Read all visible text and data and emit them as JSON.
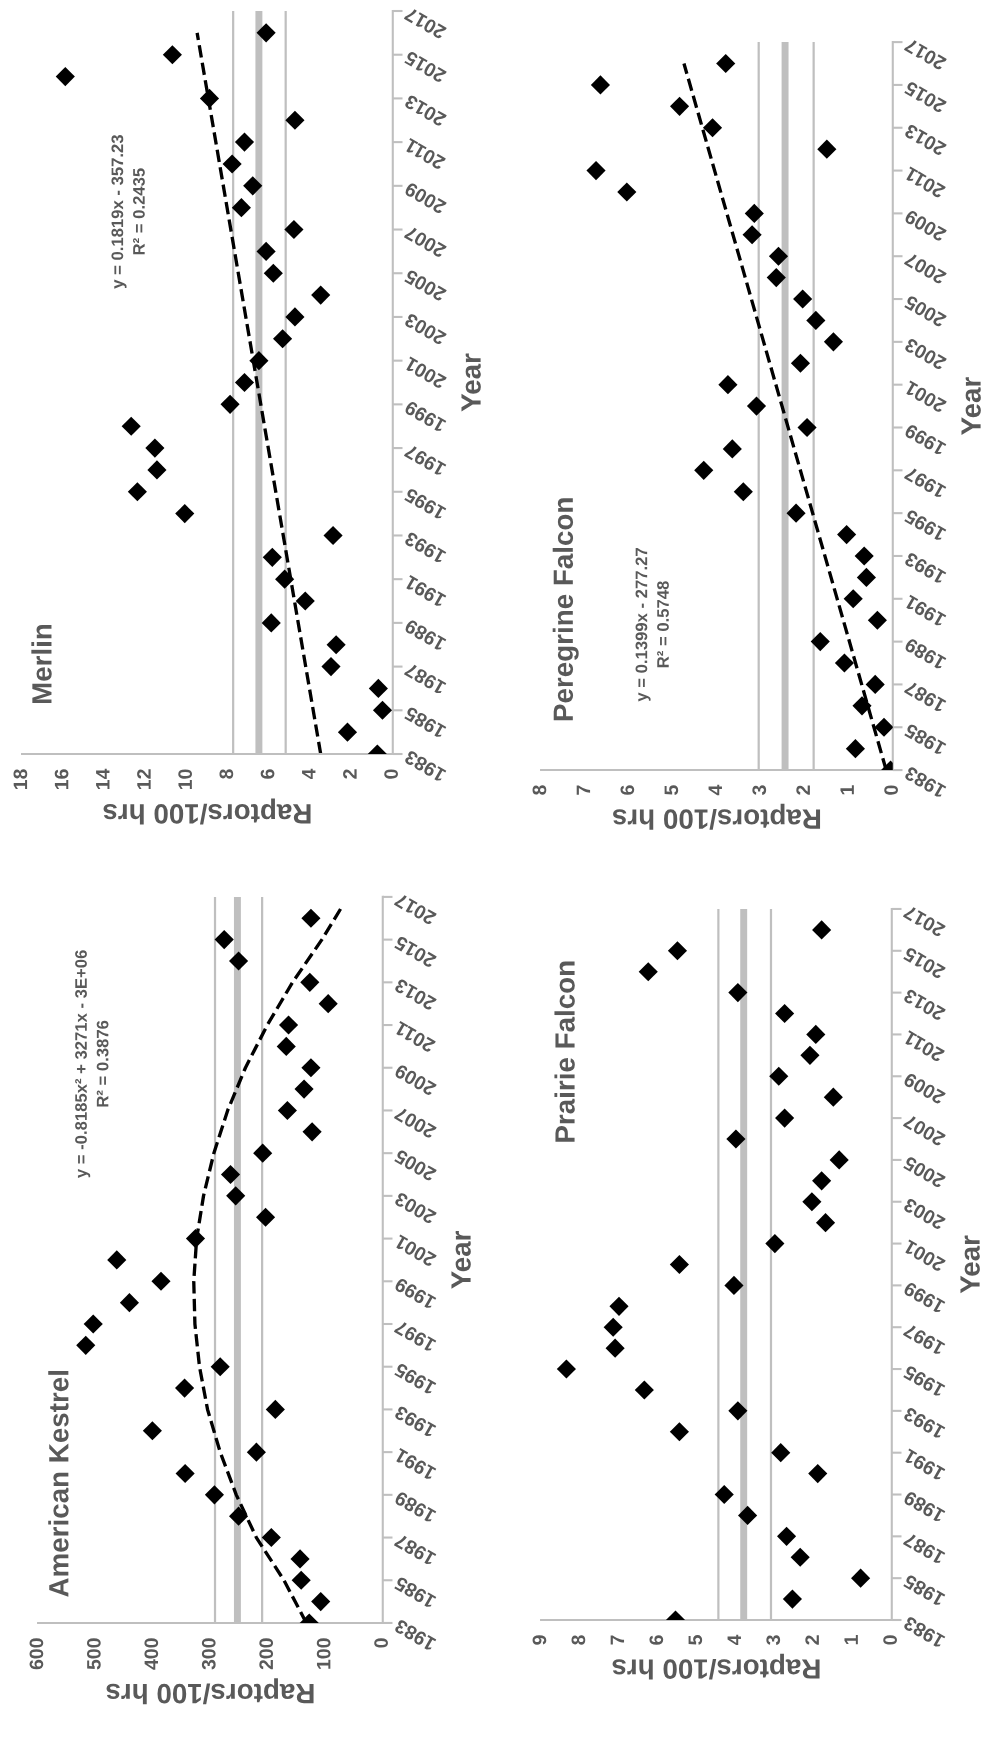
{
  "chart_data": [
    {
      "type": "scatter",
      "orientation": "horizontal",
      "title": "Merlin",
      "xlabel": "Raptors/100 hrs",
      "ylabel": "Year",
      "xlim": [
        18,
        0
      ],
      "xticks": [
        18,
        16,
        14,
        12,
        10,
        8,
        6,
        4,
        2,
        0
      ],
      "ylim": [
        1983,
        2017
      ],
      "yticks": [
        1983,
        1985,
        1987,
        1989,
        1991,
        1993,
        1995,
        1997,
        1999,
        2001,
        2003,
        2005,
        2007,
        2009,
        2011,
        2013,
        2015,
        2017
      ],
      "grid": false,
      "legend": false,
      "x": [
        1983,
        1984,
        1985,
        1986,
        1987,
        1988,
        1989,
        1990,
        1991,
        1992,
        1993,
        1994,
        1995,
        1996,
        1997,
        1998,
        1999,
        2000,
        2001,
        2002,
        2003,
        2004,
        2005,
        2006,
        2007,
        2008,
        2009,
        2010,
        2011,
        2012,
        2013,
        2014,
        2015,
        2016
      ],
      "series": [
        {
          "marker": "diamond",
          "color": "#000000",
          "values": [
            0.75,
            2.2,
            0.5,
            0.7,
            3.0,
            2.75,
            5.9,
            4.25,
            5.25,
            5.85,
            2.9,
            10.1,
            12.4,
            11.45,
            11.55,
            12.7,
            7.9,
            7.2,
            6.5,
            5.35,
            4.75,
            3.5,
            5.8,
            6.15,
            4.8,
            7.35,
            6.8,
            7.8,
            7.2,
            4.75,
            8.9,
            15.9,
            10.7,
            6.15
          ]
        },
        {
          "type": "line",
          "color": "#000000",
          "line_style": "dashed",
          "x": [
            1983,
            2016
          ],
          "values": [
            3.5,
            9.5
          ]
        }
      ],
      "ref_lines": [
        {
          "axis": "x",
          "value": 7.75,
          "color": "#bfbfbf"
        },
        {
          "axis": "x",
          "value": 6.5,
          "color": "#bfbfbf"
        },
        {
          "axis": "x",
          "value": 5.2,
          "color": "#bfbfbf"
        }
      ],
      "annotations": [
        "y = 0.1819x - 357.23\nR² = 0.2435"
      ]
    },
    {
      "type": "scatter",
      "orientation": "horizontal",
      "title": "Peregrine Falcon",
      "xlabel": "Raptors/100 hrs",
      "ylabel": "Year",
      "xlim": [
        8,
        0
      ],
      "xticks": [
        8,
        7,
        6,
        5,
        4,
        3,
        2,
        1,
        0
      ],
      "ylim": [
        1983,
        2017
      ],
      "yticks": [
        1983,
        1985,
        1987,
        1989,
        1991,
        1993,
        1995,
        1997,
        1999,
        2001,
        2003,
        2005,
        2007,
        2009,
        2011,
        2013,
        2015,
        2017
      ],
      "grid": false,
      "legend": false,
      "x": [
        1983,
        1984,
        1985,
        1986,
        1987,
        1988,
        1989,
        1990,
        1991,
        1992,
        1993,
        1994,
        1995,
        1996,
        1997,
        1998,
        1999,
        2000,
        2001,
        2002,
        2003,
        2004,
        2005,
        2006,
        2007,
        2008,
        2009,
        2010,
        2011,
        2012,
        2013,
        2014,
        2015,
        2016
      ],
      "series": [
        {
          "marker": "diamond",
          "color": "#000000",
          "values": [
            0.05,
            0.85,
            0.2,
            0.7,
            0.4,
            1.1,
            1.65,
            0.35,
            0.9,
            0.6,
            0.65,
            1.05,
            2.2,
            3.4,
            4.3,
            3.65,
            1.95,
            3.1,
            3.75,
            2.1,
            1.35,
            1.75,
            2.05,
            2.65,
            2.6,
            3.2,
            3.15,
            6.05,
            6.75,
            1.5,
            4.1,
            4.85,
            6.65,
            3.8
          ]
        },
        {
          "type": "line",
          "color": "#000000",
          "line_style": "dashed",
          "x": [
            1983,
            2016
          ],
          "values": [
            0.15,
            4.75
          ]
        }
      ],
      "ref_lines": [
        {
          "axis": "x",
          "value": 3.05,
          "color": "#bfbfbf"
        },
        {
          "axis": "x",
          "value": 2.45,
          "color": "#bfbfbf"
        },
        {
          "axis": "x",
          "value": 1.8,
          "color": "#bfbfbf"
        }
      ],
      "annotations": [
        "y = 0.1399x - 277.27\nR² = 0.5748"
      ]
    },
    {
      "type": "scatter",
      "orientation": "horizontal",
      "title": "American Kestrel",
      "xlabel": "Raptors/100 hrs",
      "ylabel": "Year",
      "xlim": [
        600,
        0
      ],
      "xticks": [
        600,
        500,
        400,
        300,
        200,
        100,
        0
      ],
      "ylim": [
        1983,
        2017
      ],
      "yticks": [
        1983,
        1985,
        1987,
        1989,
        1991,
        1993,
        1995,
        1997,
        1999,
        2001,
        2003,
        2005,
        2007,
        2009,
        2011,
        2013,
        2015,
        2017
      ],
      "grid": false,
      "legend": false,
      "x": [
        1983,
        1984,
        1985,
        1986,
        1987,
        1988,
        1989,
        1990,
        1991,
        1992,
        1993,
        1994,
        1995,
        1996,
        1997,
        1998,
        1999,
        2000,
        2001,
        2002,
        2003,
        2004,
        2005,
        2006,
        2007,
        2008,
        2009,
        2010,
        2011,
        2012,
        2013,
        2014,
        2015,
        2016
      ],
      "series": [
        {
          "marker": "diamond",
          "color": "#000000",
          "values": [
            128,
            108,
            142,
            144,
            194,
            251,
            293,
            344,
            220,
            401,
            187,
            345,
            283,
            517,
            504,
            441,
            386,
            463,
            326,
            204,
            256,
            265,
            209,
            123,
            166,
            137,
            125,
            168,
            164,
            95,
            127,
            251,
            276,
            125
          ]
        },
        {
          "type": "line",
          "color": "#000000",
          "line_style": "dashed",
          "x": [
            1983,
            1985,
            1987,
            1989,
            1991,
            1993,
            1995,
            1997,
            1999,
            2001,
            2003,
            2005,
            2007,
            2009,
            2011,
            2013,
            2015,
            2016.5
          ],
          "values": [
            133,
            172,
            220,
            255,
            283,
            305,
            319,
            327,
            329,
            324,
            312,
            294,
            270,
            239,
            201,
            157,
            106,
            72
          ]
        }
      ],
      "ref_lines": [
        {
          "axis": "x",
          "value": 292,
          "color": "#bfbfbf"
        },
        {
          "axis": "x",
          "value": 253,
          "color": "#bfbfbf"
        },
        {
          "axis": "x",
          "value": 210,
          "color": "#bfbfbf"
        }
      ],
      "annotations": [
        "y = -0.8185x² + 3271x - 3E+06\nR² = 0.3876"
      ]
    },
    {
      "type": "scatter",
      "orientation": "horizontal",
      "title": "Prairie Falcon",
      "xlabel": "Raptors/100 hrs",
      "ylabel": "Year",
      "xlim": [
        9,
        0
      ],
      "xticks": [
        9,
        8,
        7,
        6,
        5,
        4,
        3,
        2,
        1,
        0
      ],
      "ylim": [
        1983,
        2017
      ],
      "yticks": [
        1983,
        1985,
        1987,
        1989,
        1991,
        1993,
        1995,
        1997,
        1999,
        2001,
        2003,
        2005,
        2007,
        2009,
        2011,
        2013,
        2015,
        2017
      ],
      "grid": false,
      "legend": false,
      "x": [
        1983,
        1984,
        1985,
        1986,
        1987,
        1988,
        1989,
        1990,
        1991,
        1992,
        1993,
        1994,
        1995,
        1996,
        1997,
        1998,
        1999,
        2000,
        2001,
        2002,
        2003,
        2004,
        2005,
        2006,
        2007,
        2008,
        2009,
        2010,
        2011,
        2012,
        2013,
        2014,
        2015,
        2016
      ],
      "series": [
        {
          "marker": "diamond",
          "color": "#000000",
          "values": [
            5.55,
            2.55,
            0.8,
            2.35,
            2.7,
            3.7,
            4.3,
            1.9,
            2.85,
            5.45,
            3.95,
            6.35,
            8.35,
            7.1,
            7.15,
            7.0,
            4.05,
            5.45,
            3.0,
            1.7,
            2.05,
            1.8,
            1.35,
            4.0,
            2.75,
            1.5,
            2.9,
            2.1,
            1.95,
            2.75,
            3.95,
            6.25,
            5.5,
            1.8
          ]
        }
      ],
      "ref_lines": [
        {
          "axis": "x",
          "value": 4.45,
          "color": "#bfbfbf"
        },
        {
          "axis": "x",
          "value": 3.8,
          "color": "#bfbfbf"
        },
        {
          "axis": "x",
          "value": 3.1,
          "color": "#bfbfbf"
        }
      ]
    }
  ]
}
